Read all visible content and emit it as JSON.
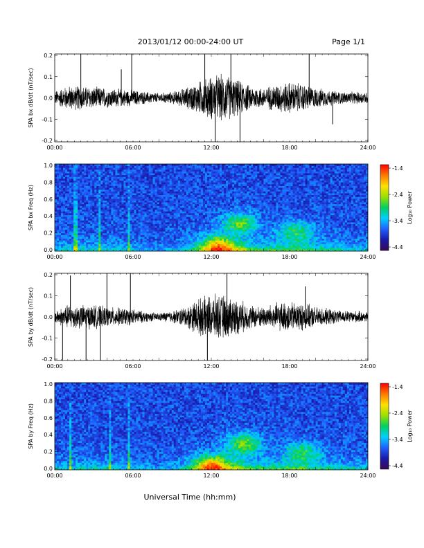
{
  "header": {
    "date_range": "2013/01/12  00:00-24:00 UT",
    "page": "Page 1/1"
  },
  "x_axis_label": "Universal Time (hh:mm)",
  "colors": {
    "waveform": "#000000",
    "spectrogram_scale": [
      "#3a0a55",
      "#1a1aa8",
      "#1f5fff",
      "#00d0ff",
      "#00d060",
      "#9be000",
      "#ffe000",
      "#ff7a00",
      "#ff0000"
    ]
  },
  "chart_data": [
    {
      "type": "line",
      "panel": "bx-waveform",
      "ylabel": "SPA bx dB/dt (nT/sec)",
      "x_ticks": [
        "00:00",
        "06:00",
        "12:00",
        "18:00",
        "24:00"
      ],
      "y_ticks": [
        "0.2",
        "0.1",
        "0.0",
        "-0.1",
        "-0.2"
      ],
      "xlim": [
        0,
        24
      ],
      "ylim": [
        -0.2,
        0.2
      ],
      "envelope": {
        "hours": [
          0,
          1,
          2,
          3,
          4,
          5,
          6,
          7,
          8,
          9,
          10,
          11,
          12,
          13,
          14,
          15,
          16,
          17,
          18,
          19,
          20,
          21,
          22,
          23,
          24
        ],
        "amplitude": [
          0.035,
          0.06,
          0.06,
          0.055,
          0.05,
          0.045,
          0.04,
          0.03,
          0.025,
          0.03,
          0.05,
          0.08,
          0.11,
          0.12,
          0.09,
          0.06,
          0.05,
          0.07,
          0.08,
          0.07,
          0.05,
          0.04,
          0.03,
          0.03,
          0.03
        ]
      },
      "spikes": [
        [
          2.0,
          0.2
        ],
        [
          5.1,
          0.13
        ],
        [
          5.9,
          0.2
        ],
        [
          11.5,
          0.2
        ],
        [
          12.3,
          -0.2
        ],
        [
          13.5,
          0.2
        ],
        [
          14.2,
          -0.2
        ],
        [
          19.5,
          0.2
        ],
        [
          21.3,
          -0.12
        ]
      ]
    },
    {
      "type": "heatmap",
      "panel": "bx-spectrogram",
      "ylabel": "SPA bx Freq (Hz)",
      "x_ticks": [
        "00:00",
        "06:00",
        "12:00",
        "18:00",
        "24:00"
      ],
      "y_ticks": [
        "1.0",
        "0.8",
        "0.6",
        "0.4",
        "0.2",
        "0.0"
      ],
      "xlim": [
        0,
        24
      ],
      "ylim": [
        0,
        1.0
      ],
      "colorbar": {
        "label": "Log₁₀ Power",
        "range": [
          -4.4,
          -1.4
        ],
        "ticks": [
          "-1.4",
          "-2.4",
          "-3.4",
          "-4.4"
        ]
      },
      "hotspots": [
        [
          14.2,
          0.32,
          -2.6
        ],
        [
          18.5,
          0.22,
          -3.0
        ],
        [
          12.5,
          0.05,
          -1.8
        ]
      ],
      "vertical_lines": [
        5.7,
        1.6,
        3.4
      ]
    },
    {
      "type": "line",
      "panel": "by-waveform",
      "ylabel": "SPA by dB/dt (nT/sec)",
      "x_ticks": [
        "00:00",
        "06:00",
        "12:00",
        "18:00",
        "24:00"
      ],
      "y_ticks": [
        "0.2",
        "0.1",
        "0.0",
        "-0.1",
        "-0.2"
      ],
      "xlim": [
        0,
        24
      ],
      "ylim": [
        -0.2,
        0.2
      ],
      "envelope": {
        "hours": [
          0,
          1,
          2,
          3,
          4,
          5,
          6,
          7,
          8,
          9,
          10,
          11,
          12,
          13,
          14,
          15,
          16,
          17,
          18,
          19,
          20,
          21,
          22,
          23,
          24
        ],
        "amplitude": [
          0.03,
          0.06,
          0.06,
          0.06,
          0.05,
          0.045,
          0.04,
          0.025,
          0.02,
          0.03,
          0.05,
          0.09,
          0.11,
          0.11,
          0.09,
          0.06,
          0.05,
          0.07,
          0.075,
          0.07,
          0.05,
          0.04,
          0.03,
          0.03,
          0.025
        ]
      },
      "spikes": [
        [
          0.6,
          -0.2
        ],
        [
          1.2,
          0.19
        ],
        [
          2.4,
          -0.2
        ],
        [
          3.5,
          -0.2
        ],
        [
          4.0,
          0.2
        ],
        [
          5.8,
          0.2
        ],
        [
          11.7,
          -0.2
        ],
        [
          13.2,
          0.2
        ],
        [
          19.2,
          0.14
        ]
      ]
    },
    {
      "type": "heatmap",
      "panel": "by-spectrogram",
      "ylabel": "SPA by Freq (Hz)",
      "x_ticks": [
        "00:00",
        "06:00",
        "12:00",
        "18:00",
        "24:00"
      ],
      "y_ticks": [
        "1.0",
        "0.8",
        "0.6",
        "0.4",
        "0.2",
        "0.0"
      ],
      "xlim": [
        0,
        24
      ],
      "ylim": [
        0,
        1.0
      ],
      "colorbar": {
        "label": "Log₁₀ Power",
        "range": [
          -4.4,
          -1.4
        ],
        "ticks": [
          "-1.4",
          "-2.4",
          "-3.4",
          "-4.4"
        ]
      },
      "hotspots": [
        [
          14.5,
          0.3,
          -2.5
        ],
        [
          19.0,
          0.2,
          -3.0
        ],
        [
          12.0,
          0.05,
          -1.8
        ]
      ],
      "vertical_lines": [
        5.7,
        1.2,
        4.2
      ]
    }
  ]
}
